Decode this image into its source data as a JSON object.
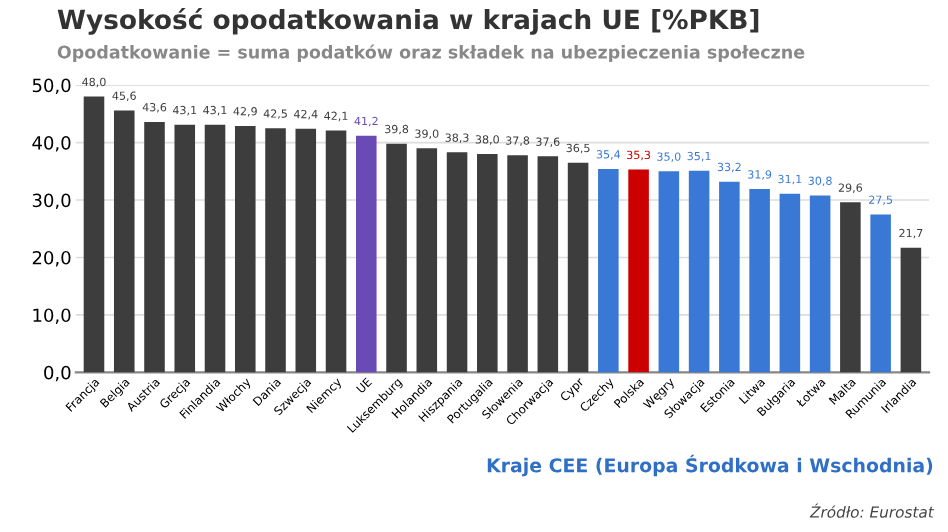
{
  "chart_data": {
    "type": "bar",
    "title": "Wysokość opodatkowania w krajach UE [%PKB]",
    "subtitle": "Opodatkowanie = suma podatków oraz składek na ubezpieczenia społeczne",
    "categories": [
      "Francja",
      "Belgia",
      "Austria",
      "Grecja",
      "Finlandia",
      "Włochy",
      "Dania",
      "Szwecja",
      "Niemcy",
      "UE",
      "Luksemburg",
      "Holandia",
      "Hiszpania",
      "Portugalia",
      "Słowenia",
      "Chorwacja",
      "Cypr",
      "Czechy",
      "Polska",
      "Węgry",
      "Słowacja",
      "Estonia",
      "Litwa",
      "Bułgaria",
      "Łotwa",
      "Malta",
      "Rumunia",
      "Irlandia"
    ],
    "values": [
      48.0,
      45.6,
      43.6,
      43.1,
      43.1,
      42.9,
      42.5,
      42.4,
      42.1,
      41.2,
      39.8,
      39.0,
      38.3,
      38.0,
      37.8,
      37.6,
      36.5,
      35.4,
      35.3,
      35.0,
      35.1,
      33.2,
      31.9,
      31.1,
      30.8,
      29.6,
      27.5,
      21.7
    ],
    "value_labels": [
      "48,0",
      "45,6",
      "43,6",
      "43,1",
      "43,1",
      "42,9",
      "42,5",
      "42,4",
      "42,1",
      "41,2",
      "39,8",
      "39,0",
      "38,3",
      "38,0",
      "37,8",
      "37,6",
      "36,5",
      "35,4",
      "35,3",
      "35,0",
      "35,1",
      "33,2",
      "31,9",
      "31,1",
      "30,8",
      "29,6",
      "27,5",
      "21,7"
    ],
    "colors": [
      "#3d3d3d",
      "#3d3d3d",
      "#3d3d3d",
      "#3d3d3d",
      "#3d3d3d",
      "#3d3d3d",
      "#3d3d3d",
      "#3d3d3d",
      "#3d3d3d",
      "#6a4bb5",
      "#3d3d3d",
      "#3d3d3d",
      "#3d3d3d",
      "#3d3d3d",
      "#3d3d3d",
      "#3d3d3d",
      "#3d3d3d",
      "#3a78d6",
      "#cc0000",
      "#3a78d6",
      "#3a78d6",
      "#3a78d6",
      "#3a78d6",
      "#3a78d6",
      "#3a78d6",
      "#3d3d3d",
      "#3a78d6",
      "#3d3d3d"
    ],
    "ylim": [
      0,
      50
    ],
    "yticks": [
      {
        "value": 0,
        "label": "0,0"
      },
      {
        "value": 10,
        "label": "10,0"
      },
      {
        "value": 20,
        "label": "20,0"
      },
      {
        "value": 30,
        "label": "30,0"
      },
      {
        "value": 40,
        "label": "40,0"
      },
      {
        "value": 50,
        "label": "50,0"
      }
    ],
    "grid": "y",
    "legend": false,
    "annotations": [
      "Kraje CEE (Europa Środkowa i Wschodnia)",
      "Źródło: Eurostat"
    ]
  }
}
